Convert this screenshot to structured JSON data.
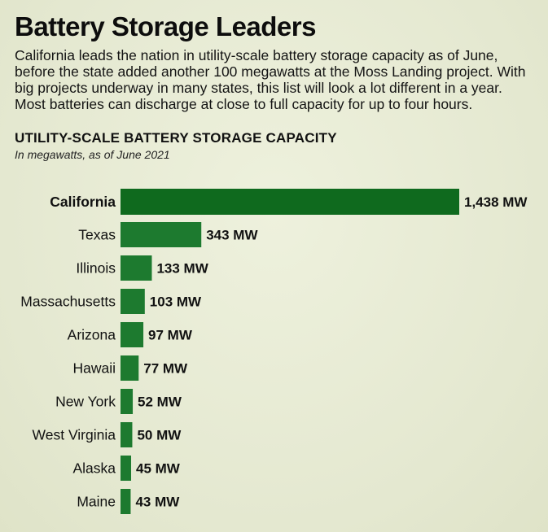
{
  "header": {
    "title": "Battery Storage Leaders",
    "subtitle": "California leads the nation in utility-scale battery storage capacity as of June, before the state added another 100 megawatts at the Moss Landing project. With big projects underway in many states, this list will look a lot different in a year. Most batteries can discharge at close to full capacity for up to four hours."
  },
  "chart_data": {
    "type": "bar",
    "orientation": "horizontal",
    "title": "UTILITY-SCALE BATTERY STORAGE CAPACITY",
    "subtitle": "In megawatts, as of June 2021",
    "categories": [
      "California",
      "Texas",
      "Illinois",
      "Massachusetts",
      "Arizona",
      "Hawaii",
      "New York",
      "West Virginia",
      "Alaska",
      "Maine"
    ],
    "values": [
      1438,
      343,
      133,
      103,
      97,
      77,
      52,
      50,
      45,
      43
    ],
    "value_labels": [
      "1,438 MW",
      "343 MW",
      "133 MW",
      "103 MW",
      "97 MW",
      "77 MW",
      "52 MW",
      "50 MW",
      "45 MW",
      "43 MW"
    ],
    "highlight": "California",
    "grid": false,
    "bar_color": "#1d7a2f",
    "highlight_color": "#0f6a1e"
  }
}
